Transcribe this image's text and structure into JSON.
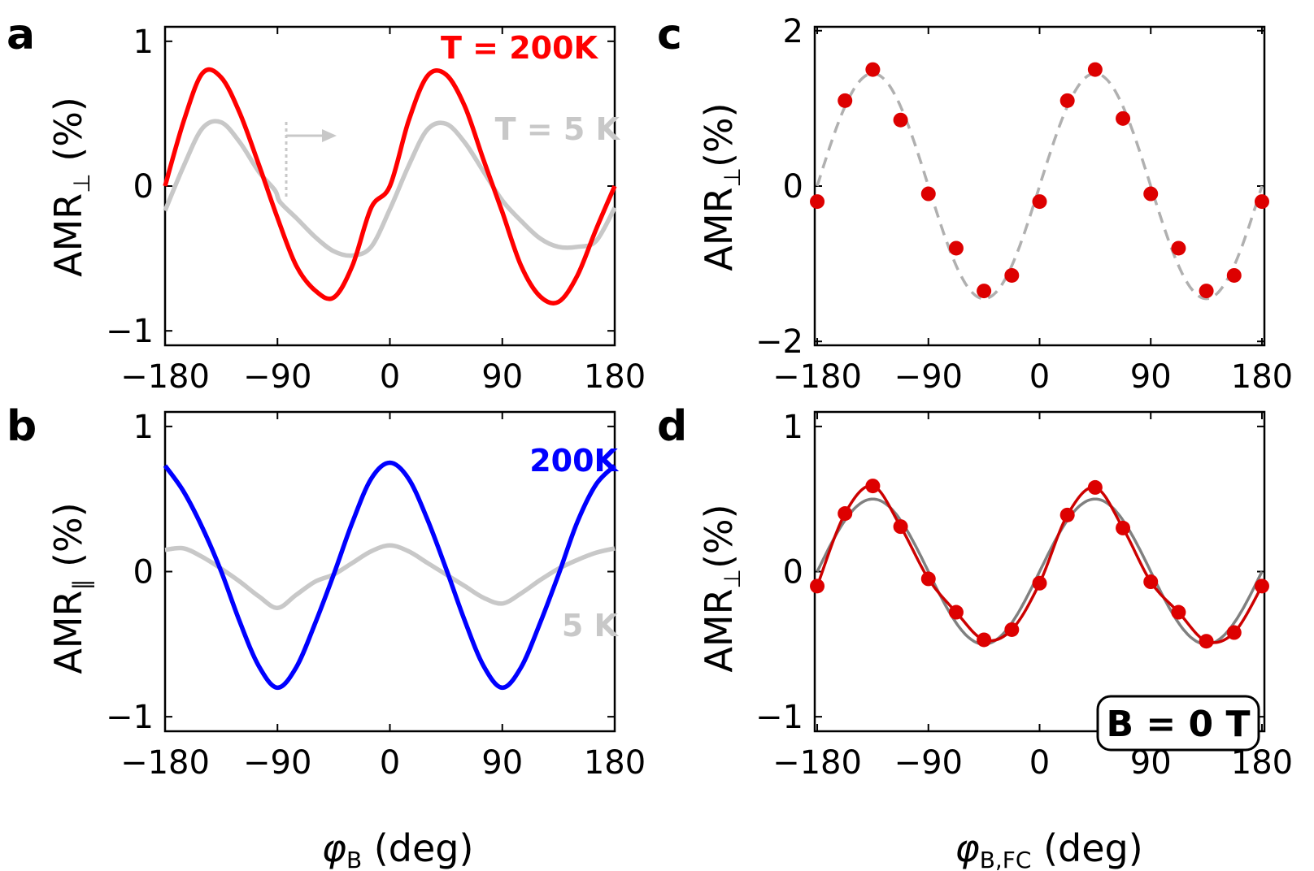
{
  "figure": {
    "panel_letters": [
      "a",
      "b",
      "c",
      "d"
    ],
    "xlabel_ab": "φ",
    "xlabel_ab_sub": "B",
    "xlabel_ab_unit": " (deg)",
    "xlabel_cd": "φ",
    "xlabel_cd_sub": "B,FC",
    "xlabel_cd_unit": " (deg)"
  },
  "colors": {
    "red": "#ff0000",
    "grey": "#c8c8c8",
    "blue": "#0000ff",
    "dot_red": "#dd0000",
    "fit_dashed": "#b0b0b0",
    "fit_grey": "#808080",
    "fit_red": "#cc0000"
  },
  "chart_data": [
    {
      "panel": "a",
      "type": "line",
      "ylabel": "AMR",
      "ylabel_sub": "⊥",
      "ylabel_unit": " (%)",
      "xlim": [
        -180,
        180
      ],
      "ylim": [
        -1.1,
        1.1
      ],
      "xticks": [
        -180,
        -90,
        0,
        90,
        180
      ],
      "xtick_labels": [
        "−180",
        "−90",
        "0",
        "90",
        "180"
      ],
      "yticks": [
        -1,
        0,
        1
      ],
      "ytick_labels": [
        "−1",
        "0",
        "1"
      ],
      "annotations": [
        "T = 200K",
        "T = 5 K"
      ],
      "series": [
        {
          "name": "T = 5 K",
          "color": "#c8c8c8",
          "x": [
            -180,
            -165,
            -150,
            -135,
            -120,
            -105,
            -92,
            -88,
            -75,
            -60,
            -45,
            -30,
            -15,
            0,
            15,
            30,
            45,
            60,
            75,
            90,
            105,
            120,
            135,
            150,
            165,
            180
          ],
          "y": [
            -0.17,
            0.14,
            0.4,
            0.44,
            0.3,
            0.1,
            -0.03,
            -0.11,
            -0.22,
            -0.35,
            -0.45,
            -0.48,
            -0.42,
            -0.16,
            0.14,
            0.39,
            0.43,
            0.3,
            0.1,
            -0.1,
            -0.24,
            -0.36,
            -0.42,
            -0.42,
            -0.38,
            -0.15
          ]
        },
        {
          "name": "T = 200K",
          "color": "#ff0000",
          "x": [
            -180,
            -165,
            -150,
            -135,
            -120,
            -105,
            -90,
            -75,
            -60,
            -45,
            -30,
            -15,
            0,
            15,
            30,
            45,
            60,
            75,
            90,
            105,
            120,
            135,
            150,
            165,
            180
          ],
          "y": [
            0.0,
            0.45,
            0.78,
            0.75,
            0.5,
            0.15,
            -0.22,
            -0.55,
            -0.72,
            -0.77,
            -0.55,
            -0.15,
            0.0,
            0.45,
            0.76,
            0.77,
            0.55,
            0.18,
            -0.18,
            -0.55,
            -0.76,
            -0.8,
            -0.62,
            -0.3,
            0.0
          ]
        }
      ]
    },
    {
      "panel": "b",
      "type": "line",
      "ylabel": "AMR",
      "ylabel_sub": "∥",
      "ylabel_unit": " (%)",
      "xlim": [
        -180,
        180
      ],
      "ylim": [
        -1.1,
        1.1
      ],
      "xticks": [
        -180,
        -90,
        0,
        90,
        180
      ],
      "xtick_labels": [
        "−180",
        "−90",
        "0",
        "90",
        "180"
      ],
      "yticks": [
        -1,
        0,
        1
      ],
      "ytick_labels": [
        "−1",
        "0",
        "1"
      ],
      "annotations": [
        "200K",
        "5 K"
      ],
      "series": [
        {
          "name": "5 K",
          "color": "#c8c8c8",
          "x": [
            -180,
            -165,
            -150,
            -135,
            -120,
            -105,
            -90,
            -75,
            -60,
            -45,
            -30,
            -15,
            0,
            15,
            30,
            45,
            60,
            75,
            90,
            105,
            120,
            135,
            150,
            165,
            180
          ],
          "y": [
            0.15,
            0.16,
            0.1,
            0.02,
            -0.07,
            -0.17,
            -0.25,
            -0.16,
            -0.07,
            -0.02,
            0.06,
            0.14,
            0.18,
            0.14,
            0.06,
            -0.02,
            -0.1,
            -0.18,
            -0.22,
            -0.15,
            -0.06,
            0.02,
            0.08,
            0.13,
            0.16
          ]
        },
        {
          "name": "200K",
          "color": "#0000ff",
          "x": [
            -180,
            -165,
            -150,
            -135,
            -120,
            -105,
            -90,
            -75,
            -60,
            -45,
            -30,
            -15,
            0,
            15,
            30,
            45,
            60,
            75,
            90,
            105,
            120,
            135,
            150,
            165,
            180
          ],
          "y": [
            0.73,
            0.55,
            0.3,
            0.0,
            -0.35,
            -0.65,
            -0.8,
            -0.66,
            -0.36,
            -0.02,
            0.34,
            0.64,
            0.75,
            0.64,
            0.36,
            0.02,
            -0.34,
            -0.65,
            -0.8,
            -0.66,
            -0.36,
            -0.02,
            0.34,
            0.6,
            0.73
          ]
        }
      ]
    },
    {
      "panel": "c",
      "type": "scatter",
      "ylabel": "AMR",
      "ylabel_sub": "⊥",
      "ylabel_unit": "(%)",
      "xlim": [
        -182,
        182
      ],
      "ylim": [
        -2.05,
        2.05
      ],
      "xticks": [
        -180,
        -90,
        0,
        90,
        180
      ],
      "xtick_labels": [
        "−180",
        "−90",
        "0",
        "90",
        "180"
      ],
      "yticks": [
        -2,
        0,
        2
      ],
      "ytick_labels": [
        "−2",
        "0",
        "2"
      ],
      "annotations": [],
      "fit": {
        "style": "dashed",
        "color": "#b0b0b0",
        "amplitude": 1.45,
        "offset": 0.0,
        "period_deg": 180,
        "peak_deg": 45
      },
      "series": [
        {
          "name": "data",
          "color": "#dd0000",
          "x": [
            -180,
            -157.5,
            -135,
            -112.5,
            -90,
            -67.5,
            -45,
            -22.5,
            0,
            22.5,
            45,
            67.5,
            90,
            112.5,
            135,
            157.5,
            180
          ],
          "y": [
            -0.2,
            1.1,
            1.5,
            0.85,
            -0.1,
            -0.8,
            -1.35,
            -1.15,
            -0.2,
            1.1,
            1.5,
            0.87,
            -0.1,
            -0.8,
            -1.35,
            -1.15,
            -0.2
          ]
        }
      ]
    },
    {
      "panel": "d",
      "type": "scatter",
      "ylabel": "AMR",
      "ylabel_sub": "⊥",
      "ylabel_unit": "(%)",
      "xlim": [
        -182,
        182
      ],
      "ylim": [
        -1.1,
        1.1
      ],
      "xticks": [
        -180,
        -90,
        0,
        90,
        180
      ],
      "xtick_labels": [
        "−180",
        "−90",
        "0",
        "90",
        "180"
      ],
      "yticks": [
        -1,
        0,
        1
      ],
      "ytick_labels": [
        "−1",
        "0",
        "1"
      ],
      "annotations": [
        "B = 0 T"
      ],
      "fit": {
        "style": "solid",
        "color": "#808080",
        "amplitude": 0.5,
        "offset": 0.0,
        "period_deg": 180,
        "peak_deg": 45
      },
      "series": [
        {
          "name": "data",
          "color": "#dd0000",
          "x": [
            -180,
            -157.5,
            -135,
            -112.5,
            -90,
            -67.5,
            -45,
            -22.5,
            0,
            22.5,
            45,
            67.5,
            90,
            112.5,
            135,
            157.5,
            180
          ],
          "y": [
            -0.1,
            0.4,
            0.59,
            0.31,
            -0.05,
            -0.28,
            -0.47,
            -0.4,
            -0.08,
            0.39,
            0.58,
            0.3,
            -0.07,
            -0.28,
            -0.48,
            -0.42,
            -0.1
          ]
        }
      ]
    }
  ]
}
